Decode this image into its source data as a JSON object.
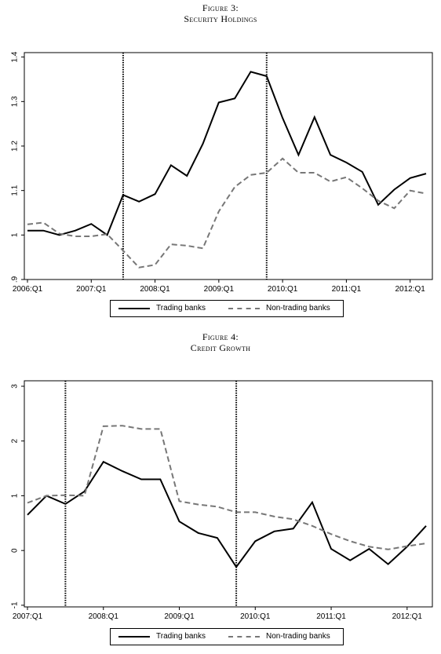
{
  "figures": [
    {
      "caption_number": "Figure 3:",
      "caption_title": "Security Holdings",
      "chart_data": {
        "type": "line",
        "title": "Security Holdings",
        "x_labels": [
          "2006:Q1",
          "2006:Q2",
          "2006:Q3",
          "2006:Q4",
          "2007:Q1",
          "2007:Q2",
          "2007:Q3",
          "2007:Q4",
          "2008:Q1",
          "2008:Q2",
          "2008:Q3",
          "2008:Q4",
          "2009:Q1",
          "2009:Q2",
          "2009:Q3",
          "2009:Q4",
          "2010:Q1",
          "2010:Q2",
          "2010:Q3",
          "2010:Q4",
          "2011:Q1",
          "2011:Q2",
          "2011:Q3",
          "2011:Q4",
          "2012:Q1",
          "2012:Q2"
        ],
        "x_tick_labels": [
          "2006:Q1",
          "2007:Q1",
          "2008:Q1",
          "2009:Q1",
          "2010:Q1",
          "2011:Q1",
          "2012:Q1"
        ],
        "y_ticks": [
          0.9,
          1,
          1.1,
          1.2,
          1.3,
          1.4
        ],
        "y_tick_labels": [
          ".9",
          "1",
          "1.1",
          "1.2",
          "1.3",
          "1.4"
        ],
        "ylim": [
          0.9,
          1.41
        ],
        "vertical_lines": [
          "2007:Q3",
          "2009:Q4"
        ],
        "series": [
          {
            "name": "Trading banks",
            "color": "#000000",
            "dash": "solid",
            "values": [
              1.01,
              1.01,
              1.0,
              1.01,
              1.025,
              1.0,
              1.09,
              1.075,
              1.092,
              1.157,
              1.133,
              1.205,
              1.298,
              1.307,
              1.367,
              1.357,
              1.263,
              1.18,
              1.265,
              1.18,
              1.163,
              1.142,
              1.068,
              1.102,
              1.128,
              1.138
            ]
          },
          {
            "name": "Non-trading banks",
            "color": "#777777",
            "dash": "dashed",
            "values": [
              1.024,
              1.028,
              1.003,
              0.997,
              0.997,
              1.002,
              0.965,
              0.927,
              0.933,
              0.979,
              0.976,
              0.97,
              1.053,
              1.108,
              1.135,
              1.14,
              1.172,
              1.14,
              1.14,
              1.12,
              1.13,
              1.105,
              1.077,
              1.06,
              1.1,
              1.093
            ]
          }
        ],
        "grid": false,
        "legend_position": "bottom"
      }
    },
    {
      "caption_number": "Figure 4:",
      "caption_title": "Credit Growth",
      "chart_data": {
        "type": "line",
        "title": "Credit Growth",
        "x_labels": [
          "2007:Q1",
          "2007:Q2",
          "2007:Q3",
          "2007:Q4",
          "2008:Q1",
          "2008:Q2",
          "2008:Q3",
          "2008:Q4",
          "2009:Q1",
          "2009:Q2",
          "2009:Q3",
          "2009:Q4",
          "2010:Q1",
          "2010:Q2",
          "2010:Q3",
          "2010:Q4",
          "2011:Q1",
          "2011:Q2",
          "2011:Q3",
          "2011:Q4",
          "2012:Q1",
          "2012:Q2"
        ],
        "x_tick_labels": [
          "2007:Q1",
          "2008:Q1",
          "2009:Q1",
          "2010:Q1",
          "2011:Q1",
          "2012:Q1"
        ],
        "y_ticks": [
          -1,
          0,
          1,
          2,
          3
        ],
        "y_tick_labels": [
          "-1",
          "0",
          "1",
          "2",
          "3"
        ],
        "ylim": [
          -1.03,
          3.1
        ],
        "vertical_lines": [
          "2007:Q3",
          "2009:Q4"
        ],
        "series": [
          {
            "name": "Trading banks",
            "color": "#000000",
            "dash": "solid",
            "values": [
              0.65,
              1.0,
              0.85,
              1.08,
              1.62,
              1.45,
              1.3,
              1.3,
              0.53,
              0.32,
              0.23,
              -0.3,
              0.17,
              0.35,
              0.4,
              0.88,
              0.03,
              -0.18,
              0.03,
              -0.25,
              0.07,
              0.45
            ]
          },
          {
            "name": "Non-trading banks",
            "color": "#777777",
            "dash": "dashed",
            "values": [
              0.87,
              1.0,
              1.01,
              1.0,
              2.27,
              2.28,
              2.22,
              2.22,
              0.9,
              0.84,
              0.8,
              0.7,
              0.7,
              0.62,
              0.57,
              0.45,
              0.3,
              0.17,
              0.07,
              0.02,
              0.08,
              0.13
            ]
          }
        ],
        "grid": false,
        "legend_position": "bottom"
      }
    }
  ]
}
